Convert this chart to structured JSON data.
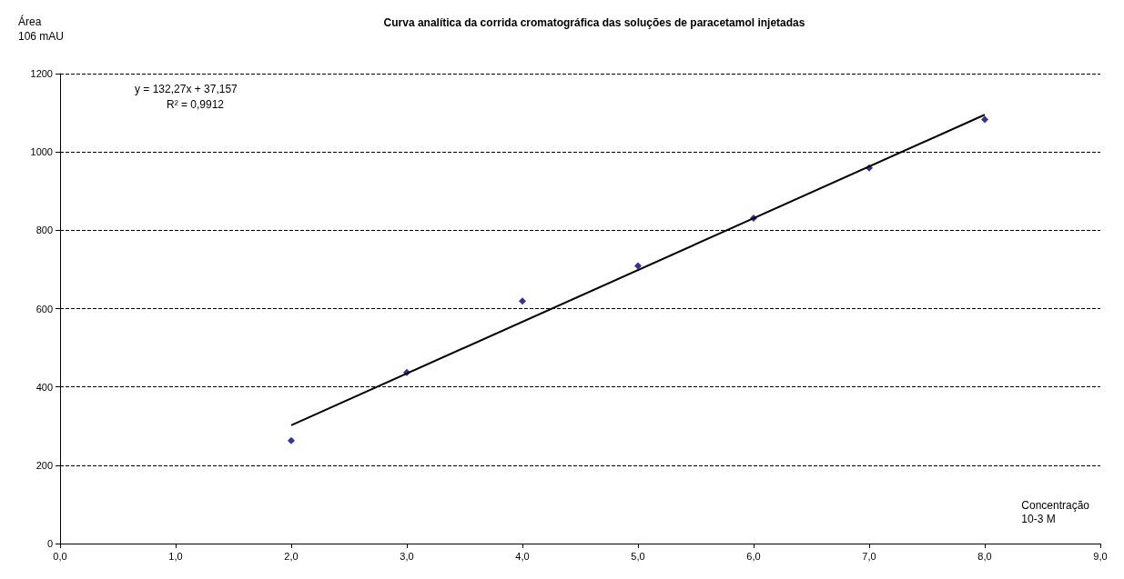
{
  "chart_data": {
    "type": "scatter",
    "title": "Curva analítica da corrida cromatográfica das soluções de paracetamol injetadas",
    "xlabel": "Concentração\n10-3 M",
    "ylabel": "Área\n106 mAU",
    "annotations": [
      "y = 132,27x + 37,157",
      "R² = 0,9912"
    ],
    "series": [
      {
        "color": "#000080",
        "x": [
          2,
          3,
          4,
          5,
          6,
          7,
          8
        ],
        "values": [
          263,
          437,
          619,
          709,
          831,
          959,
          1083
        ]
      },
      {
        "type": "line",
        "marker": "none",
        "color": "#000000",
        "x": [
          2,
          8
        ],
        "values": [
          302,
          1095
        ]
      }
    ],
    "xlim": [
      0,
      9
    ],
    "xticks": [
      {
        "value": 0,
        "label": "0,0"
      },
      {
        "value": 1,
        "label": "1,0"
      },
      {
        "value": 2,
        "label": "2,0"
      },
      {
        "value": 3,
        "label": "3,0"
      },
      {
        "value": 4,
        "label": "4,0"
      },
      {
        "value": 5,
        "label": "5,0"
      },
      {
        "value": 6,
        "label": "6,0"
      },
      {
        "value": 7,
        "label": "7,0"
      },
      {
        "value": 8,
        "label": "8,0"
      },
      {
        "value": 9,
        "label": "9,0"
      }
    ],
    "ylim": [
      0,
      1200
    ],
    "yticks": [
      0,
      200,
      400,
      600,
      800,
      1000,
      1200
    ],
    "grid": "y",
    "marker": "diamond"
  }
}
